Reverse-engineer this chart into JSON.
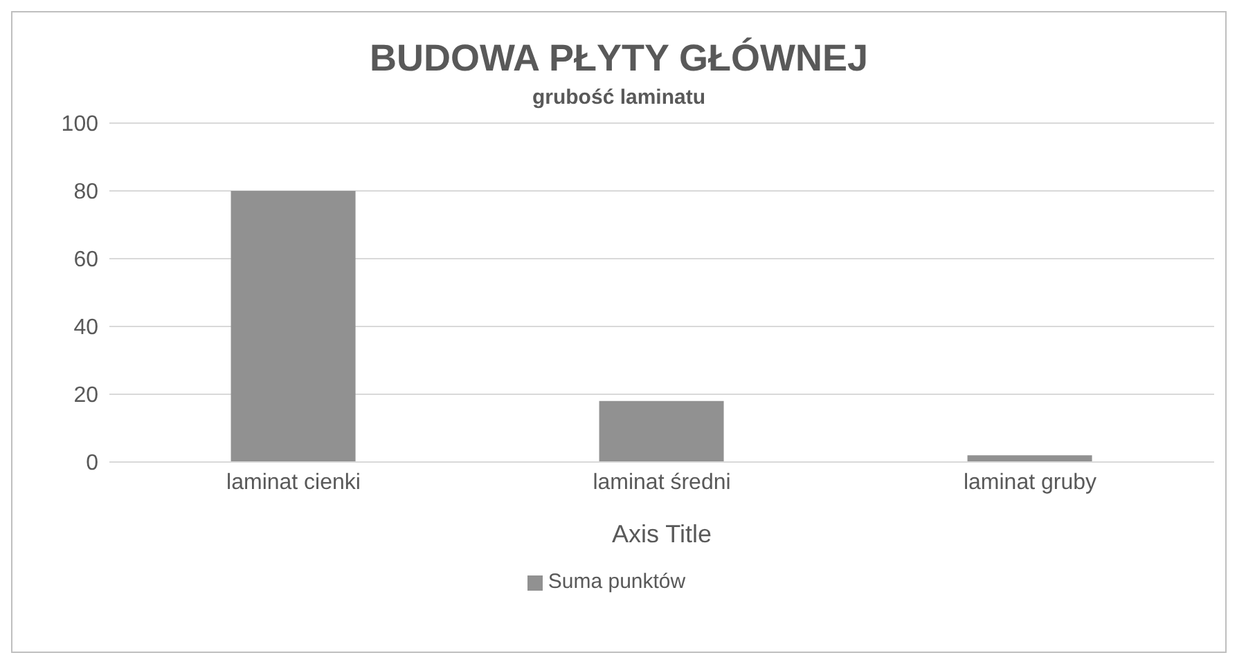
{
  "chart_data": {
    "type": "bar",
    "title": "BUDOWA PŁYTY GŁÓWNEJ",
    "subtitle": "grubość laminatu",
    "xlabel": "Axis Title",
    "categories": [
      "laminat cienki",
      "laminat średni",
      "laminat gruby"
    ],
    "series": [
      {
        "name": "Suma punktów",
        "color": "#919191",
        "values": [
          80,
          18,
          2
        ]
      }
    ],
    "ylim": [
      0,
      100
    ],
    "yticks": [
      0,
      20,
      40,
      60,
      80,
      100
    ],
    "grid": "y",
    "legend": "bottom"
  }
}
